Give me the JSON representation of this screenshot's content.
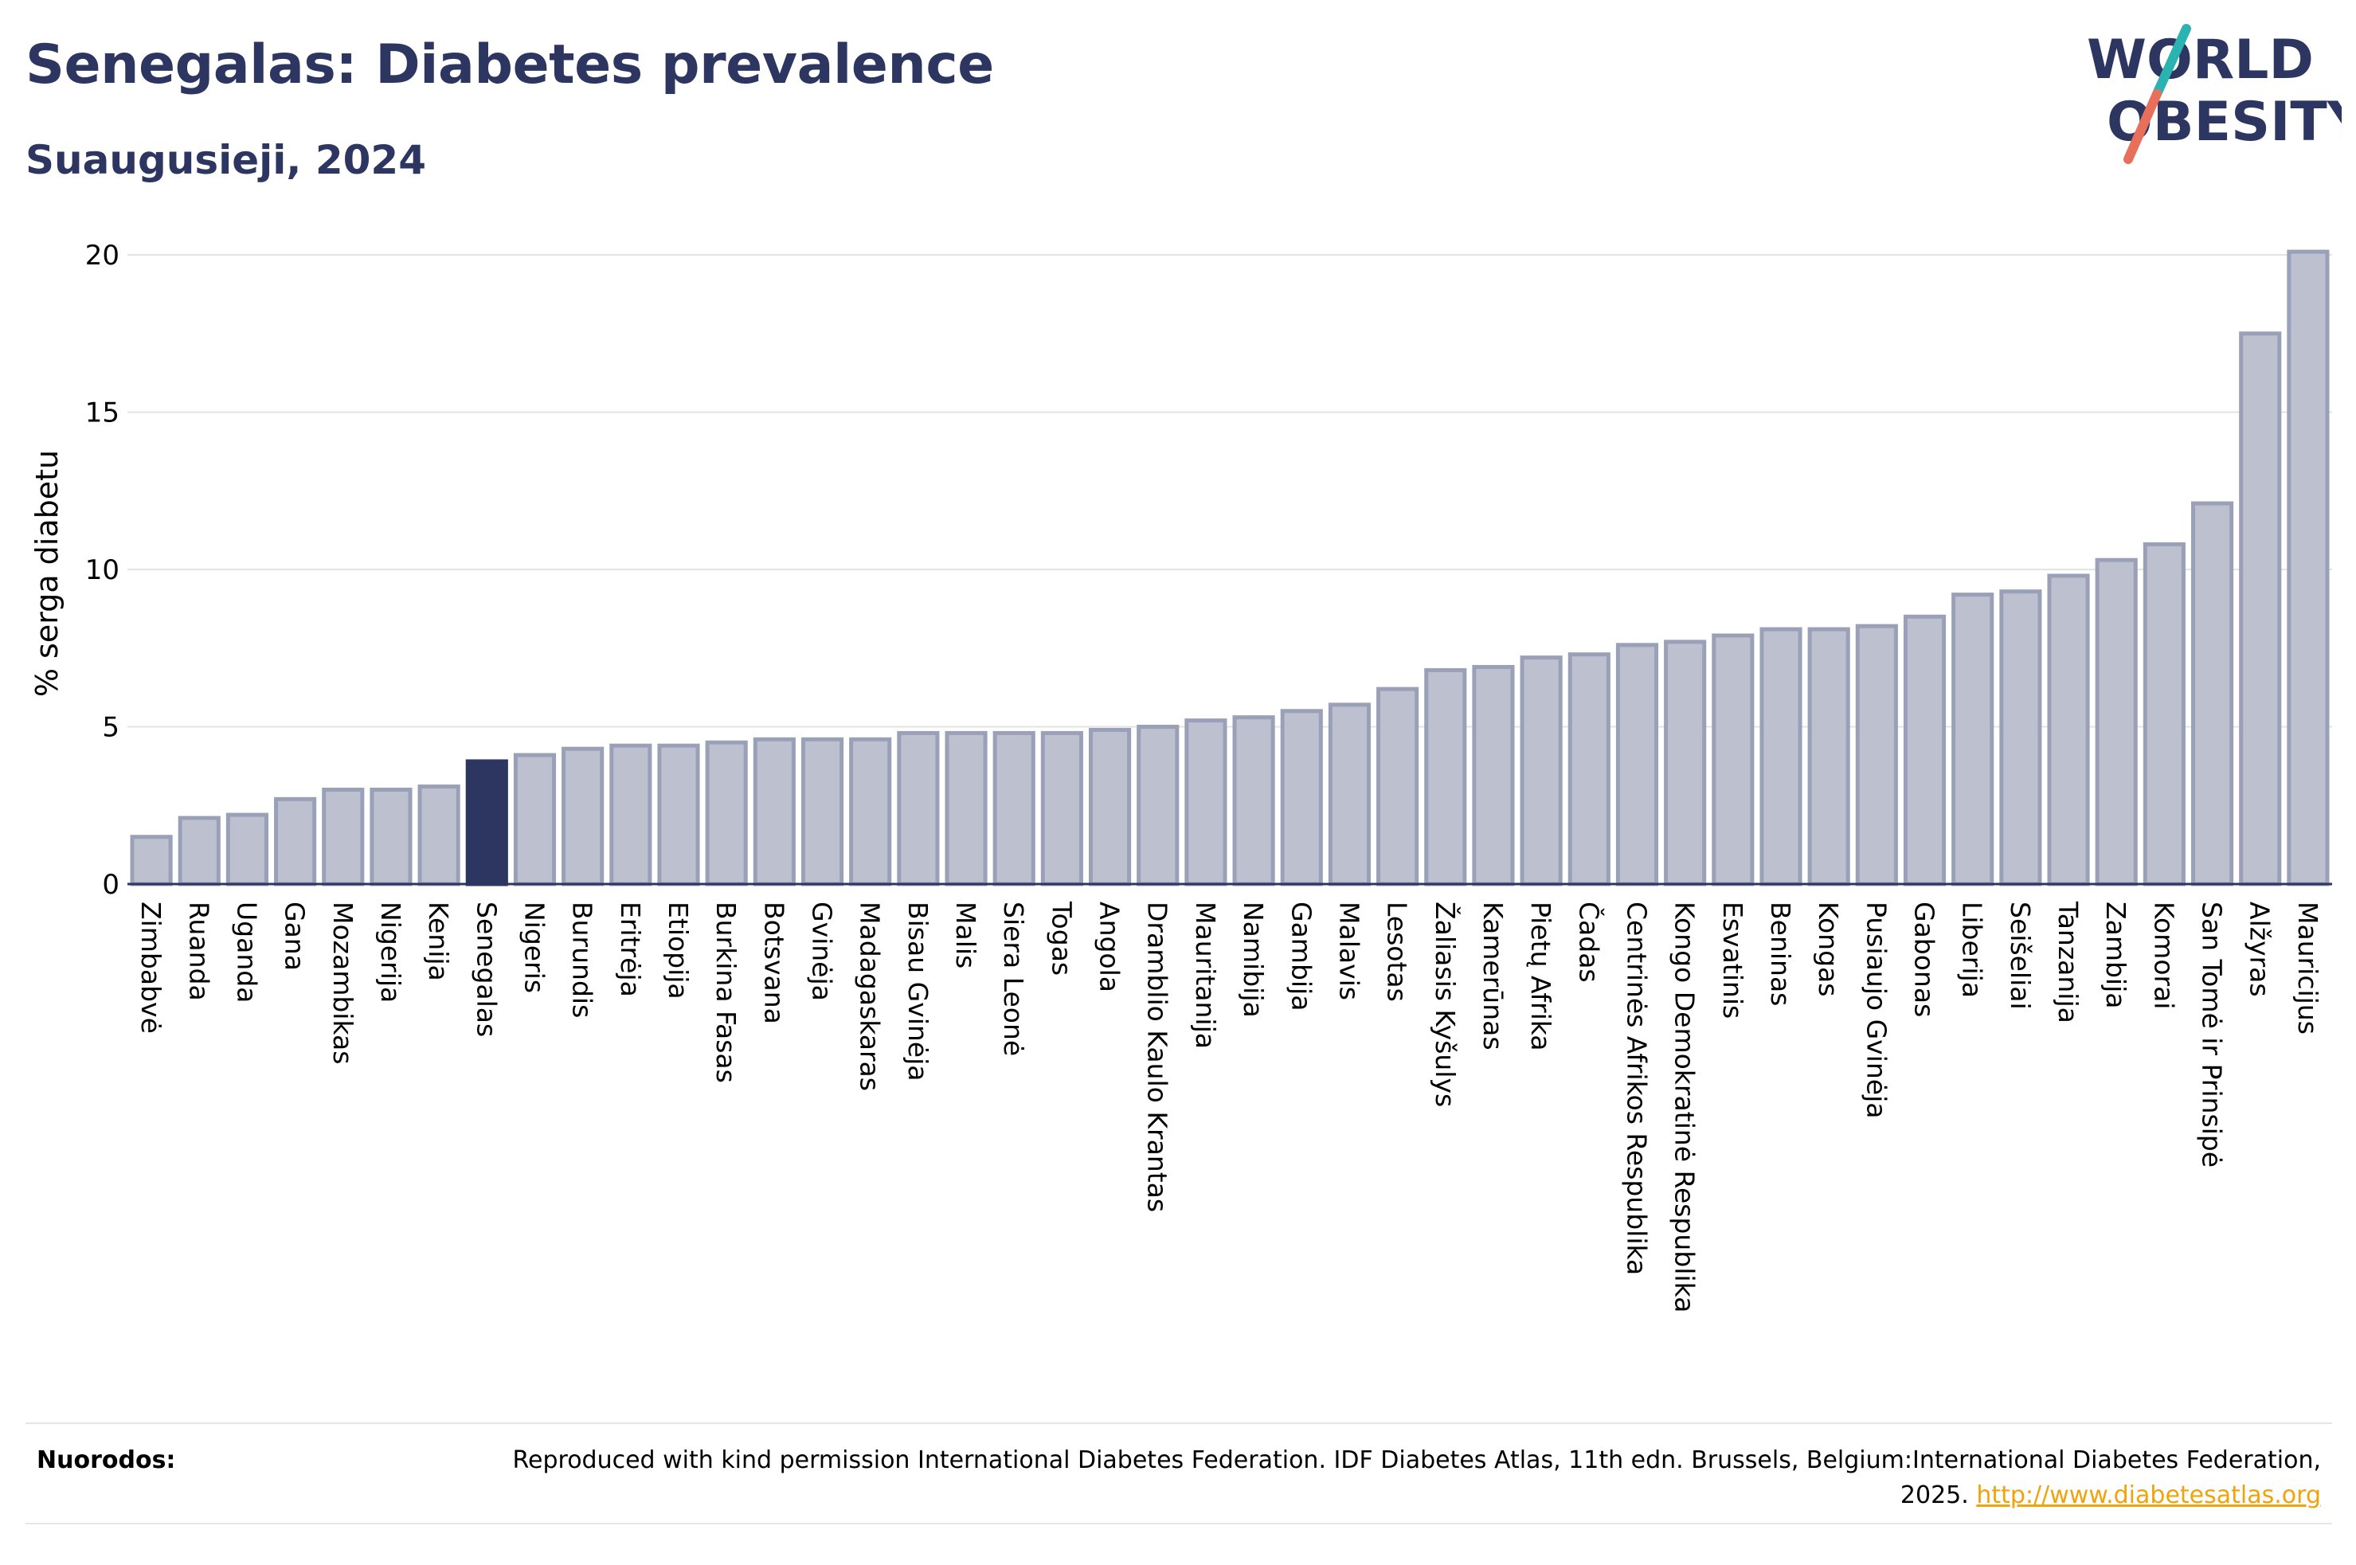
{
  "header": {
    "title": "Senegalas: Diabetes prevalence",
    "subtitle": "Suaugusieji, 2024"
  },
  "logo": {
    "line1": "WORLD",
    "line2": "OBESITY",
    "icon": "world-obesity-logo"
  },
  "footer": {
    "label": "Nuorodos:",
    "text": "Reproduced with kind permission International Diabetes Federation. IDF Diabetes Atlas, 11th edn. Brussels, Belgium:International Diabetes Federation, 2025.",
    "link": "http://www.diabetesatlas.org"
  },
  "colors": {
    "bar": "#bcc0cf",
    "bar_stroke": "#9aa0b8",
    "highlight": "#2d3561",
    "title": "#2d3561"
  },
  "chart_data": {
    "type": "bar",
    "ylabel": "% serga diabetu",
    "xlabel": "",
    "ylim": [
      0,
      21
    ],
    "yticks": [
      0,
      5,
      10,
      15,
      20
    ],
    "grid": true,
    "highlight": "Senegalas",
    "categories": [
      "Zimbabvė",
      "Ruanda",
      "Uganda",
      "Gana",
      "Mozambikas",
      "Nigerija",
      "Kenija",
      "Senegalas",
      "Nigeris",
      "Burundis",
      "Eritrėja",
      "Etiopija",
      "Burkina Fasas",
      "Botsvana",
      "Gvinėja",
      "Madagaskaras",
      "Bisau Gvinėja",
      "Malis",
      "Siera Leonė",
      "Togas",
      "Angola",
      "Dramblio Kaulo Krantas",
      "Mauritanija",
      "Namibija",
      "Gambija",
      "Malavis",
      "Lesotas",
      "Žaliasis Kyšulys",
      "Kamerūnas",
      "Pietų Afrika",
      "Čadas",
      "Centrinės Afrikos Respublika",
      "Kongo Demokratinė Respublika",
      "Esvatinis",
      "Beninas",
      "Kongas",
      "Pusiaujo Gvinėja",
      "Gabonas",
      "Liberija",
      "Seišeliai",
      "Tanzanija",
      "Zambija",
      "Komorai",
      "San Tomė ir Prinsipė",
      "Alžyras",
      "Mauricijus"
    ],
    "values": [
      1.5,
      2.1,
      2.2,
      2.7,
      3.0,
      3.0,
      3.1,
      3.9,
      4.1,
      4.3,
      4.4,
      4.4,
      4.5,
      4.6,
      4.6,
      4.6,
      4.8,
      4.8,
      4.8,
      4.8,
      4.9,
      5.0,
      5.2,
      5.3,
      5.5,
      5.7,
      6.2,
      6.8,
      6.9,
      7.2,
      7.3,
      7.6,
      7.7,
      7.9,
      8.1,
      8.1,
      8.2,
      8.5,
      9.2,
      9.3,
      9.8,
      10.3,
      10.8,
      12.1,
      17.5,
      20.1
    ]
  }
}
